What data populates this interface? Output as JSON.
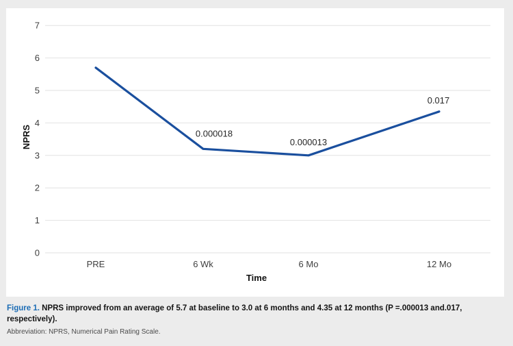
{
  "figure": {
    "caption_label": "Figure 1.",
    "caption_text": " NPRS improved from an average of 5.7 at baseline to 3.0 at 6 months and 4.35 at 12 months (P =.000013 and.017, respectively).",
    "abbreviation": "Abbreviation: NPRS, Numerical Pain Rating Scale."
  },
  "colors": {
    "page_background": "#ececec",
    "panel_background": "#ffffff",
    "line_color": "#1a4f9e",
    "gridline_color": "#e2e2e2",
    "caption_label_color": "#1b6cb5"
  },
  "chart_data": {
    "type": "line",
    "title": "",
    "categories": [
      "PRE",
      "6 Wk",
      "6 Mo",
      "12 Mo"
    ],
    "values": [
      5.7,
      3.2,
      3.0,
      4.35
    ],
    "point_labels": [
      "",
      "0.000018",
      "0.000013",
      "0.017"
    ],
    "xlabel": "Time",
    "ylabel": "NPRS",
    "ylim": [
      0,
      7
    ],
    "yticks": [
      0,
      1,
      2,
      3,
      4,
      5,
      6,
      7
    ],
    "grid": true,
    "legend": "none",
    "line_color": "#1a4f9e"
  }
}
